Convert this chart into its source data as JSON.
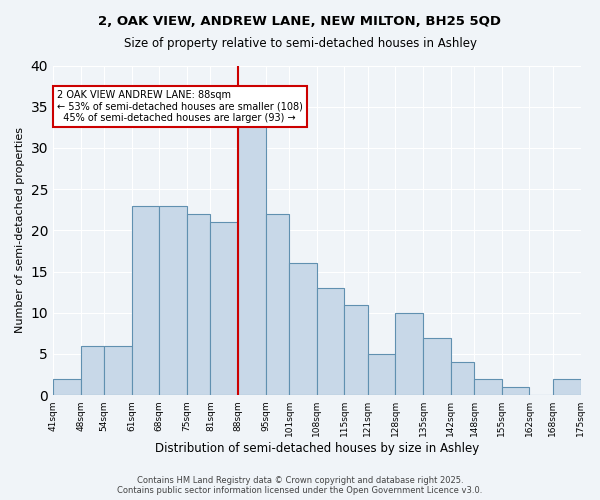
{
  "title1": "2, OAK VIEW, ANDREW LANE, NEW MILTON, BH25 5QD",
  "title2": "Size of property relative to semi-detached houses in Ashley",
  "xlabel": "Distribution of semi-detached houses by size in Ashley",
  "ylabel": "Number of semi-detached properties",
  "bins": [
    41,
    48,
    54,
    61,
    68,
    75,
    81,
    88,
    95,
    101,
    108,
    115,
    121,
    128,
    135,
    142,
    148,
    155,
    162,
    168,
    175
  ],
  "counts": [
    2,
    6,
    6,
    23,
    23,
    22,
    21,
    33,
    22,
    16,
    13,
    11,
    5,
    10,
    7,
    4,
    2,
    1,
    0,
    2
  ],
  "bar_color": "#c8d8e8",
  "bar_edge_color": "#6090b0",
  "property_line_x": 88,
  "annotation_text": "2 OAK VIEW ANDREW LANE: 88sqm\n← 53% of semi-detached houses are smaller (108)\n  45% of semi-detached houses are larger (93) →",
  "annotation_box_color": "#ffffff",
  "annotation_box_edge_color": "#cc0000",
  "vline_color": "#cc0000",
  "footer_text": "Contains HM Land Registry data © Crown copyright and database right 2025.\nContains public sector information licensed under the Open Government Licence v3.0.",
  "background_color": "#f0f4f8",
  "ylim": [
    0,
    40
  ],
  "tick_labels": [
    "41sqm",
    "48sqm",
    "54sqm",
    "61sqm",
    "68sqm",
    "75sqm",
    "81sqm",
    "88sqm",
    "95sqm",
    "101sqm",
    "108sqm",
    "115sqm",
    "121sqm",
    "128sqm",
    "135sqm",
    "142sqm",
    "148sqm",
    "155sqm",
    "162sqm",
    "168sqm",
    "175sqm"
  ]
}
